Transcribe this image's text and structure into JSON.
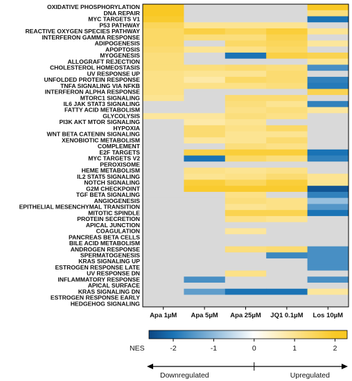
{
  "chart_data": {
    "type": "heatmap",
    "columns": [
      "Apa 1µM",
      "Apa 5µM",
      "Apa 25µM",
      "JQ1 0.1µM",
      "Los 10µM"
    ],
    "rows": [
      "OXIDATIVE PHOSPHORYLATION",
      "DNA REPAIR",
      "MYC TARGETS V1",
      "P53 PATHWAY",
      "REACTIVE OXYGEN SPECIES PATHWAY",
      "INTERFERON GAMMA RESPONSE",
      "ADIPOGENESIS",
      "APOPTOSIS",
      "MYOGENESIS",
      "ALLOGRAFT REJECTION",
      "CHOLESTEROL HOMEOSTASIS",
      "UV RESPONSE UP",
      "UNFOLDED PROTEIN RESPONSE",
      "TNFA SIGNALING VIA NFKB",
      "INTERFERON ALPHA RESPONSE",
      "MTORC1 SIGNALING",
      "IL6 JAK STAT3 SIGNALING",
      "FATTY ACID METABOLISM",
      "GLYCOLYSIS",
      "PI3K AKT MTOR SIGNALING",
      "HYPOXIA",
      "WNT BETA CATENIN SIGNALING",
      "XENOBIOTIC METABOLISM",
      "COMPLEMENT",
      "E2F TARGETS",
      "MYC TARGETS V2",
      "PEROXISOME",
      "HEME METABOLISM",
      "IL2 STAT5 SIGNALING",
      "NOTCH SIGNALING",
      "G2M CHECKPOINT",
      "TGF BETA SIGNALING",
      "ANGIOGENESIS",
      "EPITHELIAL MESENCHYMAL TRANSITION",
      "MITOTIC SPINDLE",
      "PROTEIN SECRETION",
      "APICAL JUNCTION",
      "COAGULATION",
      "PANCREAS BETA CELLS",
      "BILE ACID METABOLISM",
      "ANDROGEN RESPONSE",
      "SPERMATOGENESIS",
      "KRAS SIGNALING UP",
      "ESTROGEN RESPONSE LATE",
      "UV RESPONSE DN",
      "INFLAMMATORY RESPONSE",
      "APICAL SURFACE",
      "KRAS SIGNALING DN",
      "ESTROGEN RESPONSE EARLY",
      "HEDGEHOG SIGNALING"
    ],
    "values": [
      [
        2.0,
        null,
        null,
        null,
        2.0
      ],
      [
        2.0,
        null,
        null,
        null,
        1.2
      ],
      [
        1.9,
        null,
        null,
        null,
        -2.0
      ],
      [
        1.5,
        1.0,
        1.0,
        1.0,
        null
      ],
      [
        1.4,
        1.7,
        1.5,
        1.8,
        1.0
      ],
      [
        1.4,
        1.2,
        1.2,
        1.6,
        null
      ],
      [
        1.4,
        null,
        1.4,
        1.5,
        0.9
      ],
      [
        1.3,
        1.0,
        1.1,
        1.4,
        null
      ],
      [
        1.2,
        null,
        -2.0,
        1.7,
        1.6
      ],
      [
        1.2,
        null,
        null,
        null,
        1.0
      ],
      [
        1.2,
        1.2,
        1.3,
        1.2,
        -1.6
      ],
      [
        1.1,
        1.0,
        1.0,
        1.3,
        null
      ],
      [
        1.1,
        0.8,
        1.4,
        1.3,
        -1.8
      ],
      [
        1.1,
        1.1,
        1.1,
        1.2,
        -1.9
      ],
      [
        1.1,
        null,
        null,
        null,
        1.6
      ],
      [
        1.0,
        null,
        1.3,
        1.3,
        null
      ],
      [
        null,
        null,
        1.2,
        1.0,
        -1.8
      ],
      [
        null,
        null,
        1.1,
        1.2,
        0.9
      ],
      [
        0.9,
        0.9,
        1.2,
        1.1,
        null
      ],
      [
        null,
        0.8,
        1.0,
        null,
        null
      ],
      [
        null,
        1.3,
        1.1,
        1.4,
        null
      ],
      [
        null,
        1.3,
        1.0,
        1.0,
        null
      ],
      [
        null,
        0.9,
        1.0,
        1.3,
        null
      ],
      [
        null,
        null,
        1.2,
        1.1,
        null
      ],
      [
        null,
        1.7,
        1.8,
        1.8,
        -2.0
      ],
      [
        null,
        -2.0,
        1.4,
        1.2,
        -1.8
      ],
      [
        null,
        null,
        null,
        null,
        null
      ],
      [
        null,
        1.1,
        1.0,
        1.1,
        null
      ],
      [
        null,
        1.0,
        1.1,
        1.3,
        1.0
      ],
      [
        null,
        1.8,
        1.5,
        1.8,
        1.0
      ],
      [
        null,
        1.9,
        1.9,
        1.9,
        -2.4
      ],
      [
        null,
        null,
        1.1,
        null,
        -1.8
      ],
      [
        null,
        null,
        1.2,
        1.1,
        -0.9
      ],
      [
        null,
        null,
        1.0,
        1.1,
        -1.5
      ],
      [
        null,
        null,
        1.6,
        1.6,
        -2.0
      ],
      [
        null,
        null,
        1.1,
        1.0,
        null
      ],
      [
        null,
        null,
        null,
        null,
        null
      ],
      [
        null,
        null,
        0.9,
        null,
        null
      ],
      [
        null,
        null,
        null,
        null,
        null
      ],
      [
        null,
        null,
        null,
        null,
        null
      ],
      [
        null,
        null,
        1.2,
        1.3,
        -1.6
      ],
      [
        null,
        null,
        null,
        -1.7,
        -1.6
      ],
      [
        null,
        null,
        null,
        null,
        -1.6
      ],
      [
        null,
        null,
        null,
        null,
        -1.6
      ],
      [
        null,
        null,
        1.1,
        null,
        null
      ],
      [
        null,
        -1.6,
        null,
        null,
        -1.6
      ],
      [
        null,
        null,
        null,
        null,
        null
      ],
      [
        null,
        -1.4,
        -2.0,
        -2.0,
        0.9
      ],
      [
        null,
        null,
        null,
        null,
        null
      ],
      [
        null,
        null,
        null,
        null,
        null
      ]
    ],
    "colorbar": {
      "label": "NES",
      "ticks": [
        -2,
        -1,
        0,
        1,
        2
      ],
      "range": [
        -2.6,
        2.3
      ],
      "colors": {
        "negative": "#1a73b5",
        "zero": "#ffffff",
        "positive": "#f9c824",
        "missing": "#d9d9d9"
      }
    },
    "bottom_labels": {
      "left": "Downregulated",
      "right": "Upregulated"
    }
  }
}
